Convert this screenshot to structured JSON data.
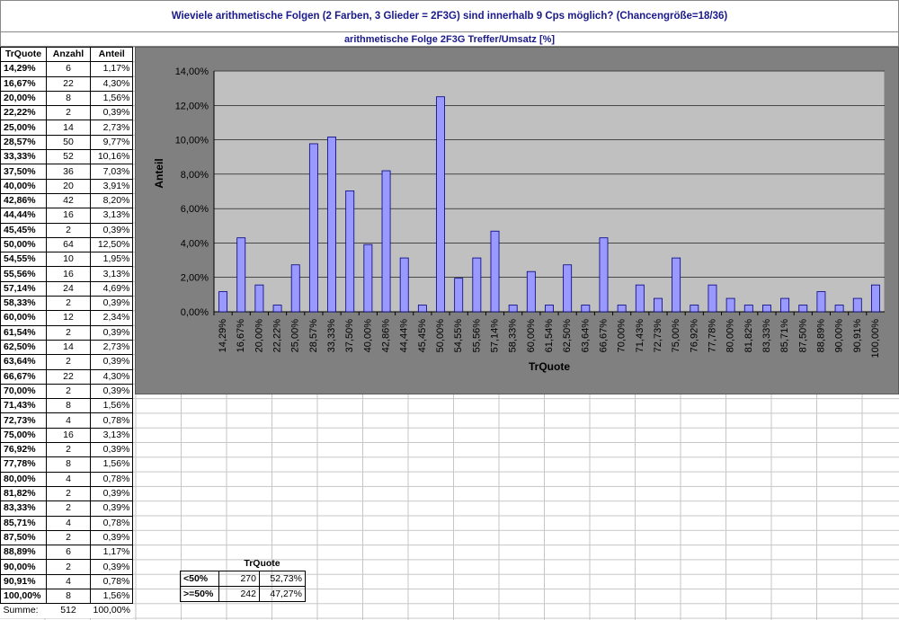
{
  "header": {
    "title": "Wieviele arithmetische Folgen (2 Farben, 3 Glieder = 2F3G) sind innerhalb 9 Cps möglich? (Chancengröße=18/36)",
    "subtitle": "arithmetische Folge 2F3G Treffer/Umsatz [%]"
  },
  "table": {
    "columns": [
      "TrQuote",
      "Anzahl",
      "Anteil"
    ],
    "rows": [
      {
        "q": "14,29%",
        "n": "6",
        "p": "1,17%"
      },
      {
        "q": "16,67%",
        "n": "22",
        "p": "4,30%"
      },
      {
        "q": "20,00%",
        "n": "8",
        "p": "1,56%"
      },
      {
        "q": "22,22%",
        "n": "2",
        "p": "0,39%"
      },
      {
        "q": "25,00%",
        "n": "14",
        "p": "2,73%"
      },
      {
        "q": "28,57%",
        "n": "50",
        "p": "9,77%"
      },
      {
        "q": "33,33%",
        "n": "52",
        "p": "10,16%"
      },
      {
        "q": "37,50%",
        "n": "36",
        "p": "7,03%"
      },
      {
        "q": "40,00%",
        "n": "20",
        "p": "3,91%"
      },
      {
        "q": "42,86%",
        "n": "42",
        "p": "8,20%"
      },
      {
        "q": "44,44%",
        "n": "16",
        "p": "3,13%"
      },
      {
        "q": "45,45%",
        "n": "2",
        "p": "0,39%"
      },
      {
        "q": "50,00%",
        "n": "64",
        "p": "12,50%"
      },
      {
        "q": "54,55%",
        "n": "10",
        "p": "1,95%"
      },
      {
        "q": "55,56%",
        "n": "16",
        "p": "3,13%"
      },
      {
        "q": "57,14%",
        "n": "24",
        "p": "4,69%"
      },
      {
        "q": "58,33%",
        "n": "2",
        "p": "0,39%"
      },
      {
        "q": "60,00%",
        "n": "12",
        "p": "2,34%"
      },
      {
        "q": "61,54%",
        "n": "2",
        "p": "0,39%"
      },
      {
        "q": "62,50%",
        "n": "14",
        "p": "2,73%"
      },
      {
        "q": "63,64%",
        "n": "2",
        "p": "0,39%"
      },
      {
        "q": "66,67%",
        "n": "22",
        "p": "4,30%"
      },
      {
        "q": "70,00%",
        "n": "2",
        "p": "0,39%"
      },
      {
        "q": "71,43%",
        "n": "8",
        "p": "1,56%"
      },
      {
        "q": "72,73%",
        "n": "4",
        "p": "0,78%"
      },
      {
        "q": "75,00%",
        "n": "16",
        "p": "3,13%"
      },
      {
        "q": "76,92%",
        "n": "2",
        "p": "0,39%"
      },
      {
        "q": "77,78%",
        "n": "8",
        "p": "1,56%"
      },
      {
        "q": "80,00%",
        "n": "4",
        "p": "0,78%"
      },
      {
        "q": "81,82%",
        "n": "2",
        "p": "0,39%"
      },
      {
        "q": "83,33%",
        "n": "2",
        "p": "0,39%"
      },
      {
        "q": "85,71%",
        "n": "4",
        "p": "0,78%"
      },
      {
        "q": "87,50%",
        "n": "2",
        "p": "0,39%"
      },
      {
        "q": "88,89%",
        "n": "6",
        "p": "1,17%"
      },
      {
        "q": "90,00%",
        "n": "2",
        "p": "0,39%"
      },
      {
        "q": "90,91%",
        "n": "4",
        "p": "0,78%"
      },
      {
        "q": "100,00%",
        "n": "8",
        "p": "1,56%"
      }
    ],
    "sum": {
      "label": "Summe:",
      "n": "512",
      "p": "100,00%"
    }
  },
  "summary": {
    "header": "TrQuote",
    "rows": [
      {
        "label": "<50%",
        "count": "270",
        "pct": "52,73%"
      },
      {
        "label": ">=50%",
        "count": "242",
        "pct": "47,27%"
      }
    ]
  },
  "colors": {
    "bar_fill": "#9999ff",
    "bar_stroke": "#000080",
    "plot_bg": "#c0c0c0",
    "chart_bg": "#808080",
    "title_text": "#1a1a8c"
  },
  "chart_data": {
    "type": "bar",
    "title": "",
    "xlabel": "TrQuote",
    "ylabel": "Anteil",
    "ylim": [
      0,
      14
    ],
    "y_ticks": [
      "0,00%",
      "2,00%",
      "4,00%",
      "6,00%",
      "8,00%",
      "10,00%",
      "12,00%",
      "14,00%"
    ],
    "grid": true,
    "legend": "none",
    "categories": [
      "14,29%",
      "16,67%",
      "20,00%",
      "22,22%",
      "25,00%",
      "28,57%",
      "33,33%",
      "37,50%",
      "40,00%",
      "42,86%",
      "44,44%",
      "45,45%",
      "50,00%",
      "54,55%",
      "55,56%",
      "57,14%",
      "58,33%",
      "60,00%",
      "61,54%",
      "62,50%",
      "63,64%",
      "66,67%",
      "70,00%",
      "71,43%",
      "72,73%",
      "75,00%",
      "76,92%",
      "77,78%",
      "80,00%",
      "81,82%",
      "83,33%",
      "85,71%",
      "87,50%",
      "88,89%",
      "90,00%",
      "90,91%",
      "100,00%"
    ],
    "values": [
      1.17,
      4.3,
      1.56,
      0.39,
      2.73,
      9.77,
      10.16,
      7.03,
      3.91,
      8.2,
      3.13,
      0.39,
      12.5,
      1.95,
      3.13,
      4.69,
      0.39,
      2.34,
      0.39,
      2.73,
      0.39,
      4.3,
      0.39,
      1.56,
      0.78,
      3.13,
      0.39,
      1.56,
      0.78,
      0.39,
      0.39,
      0.78,
      0.39,
      1.17,
      0.39,
      0.78,
      1.56
    ]
  }
}
